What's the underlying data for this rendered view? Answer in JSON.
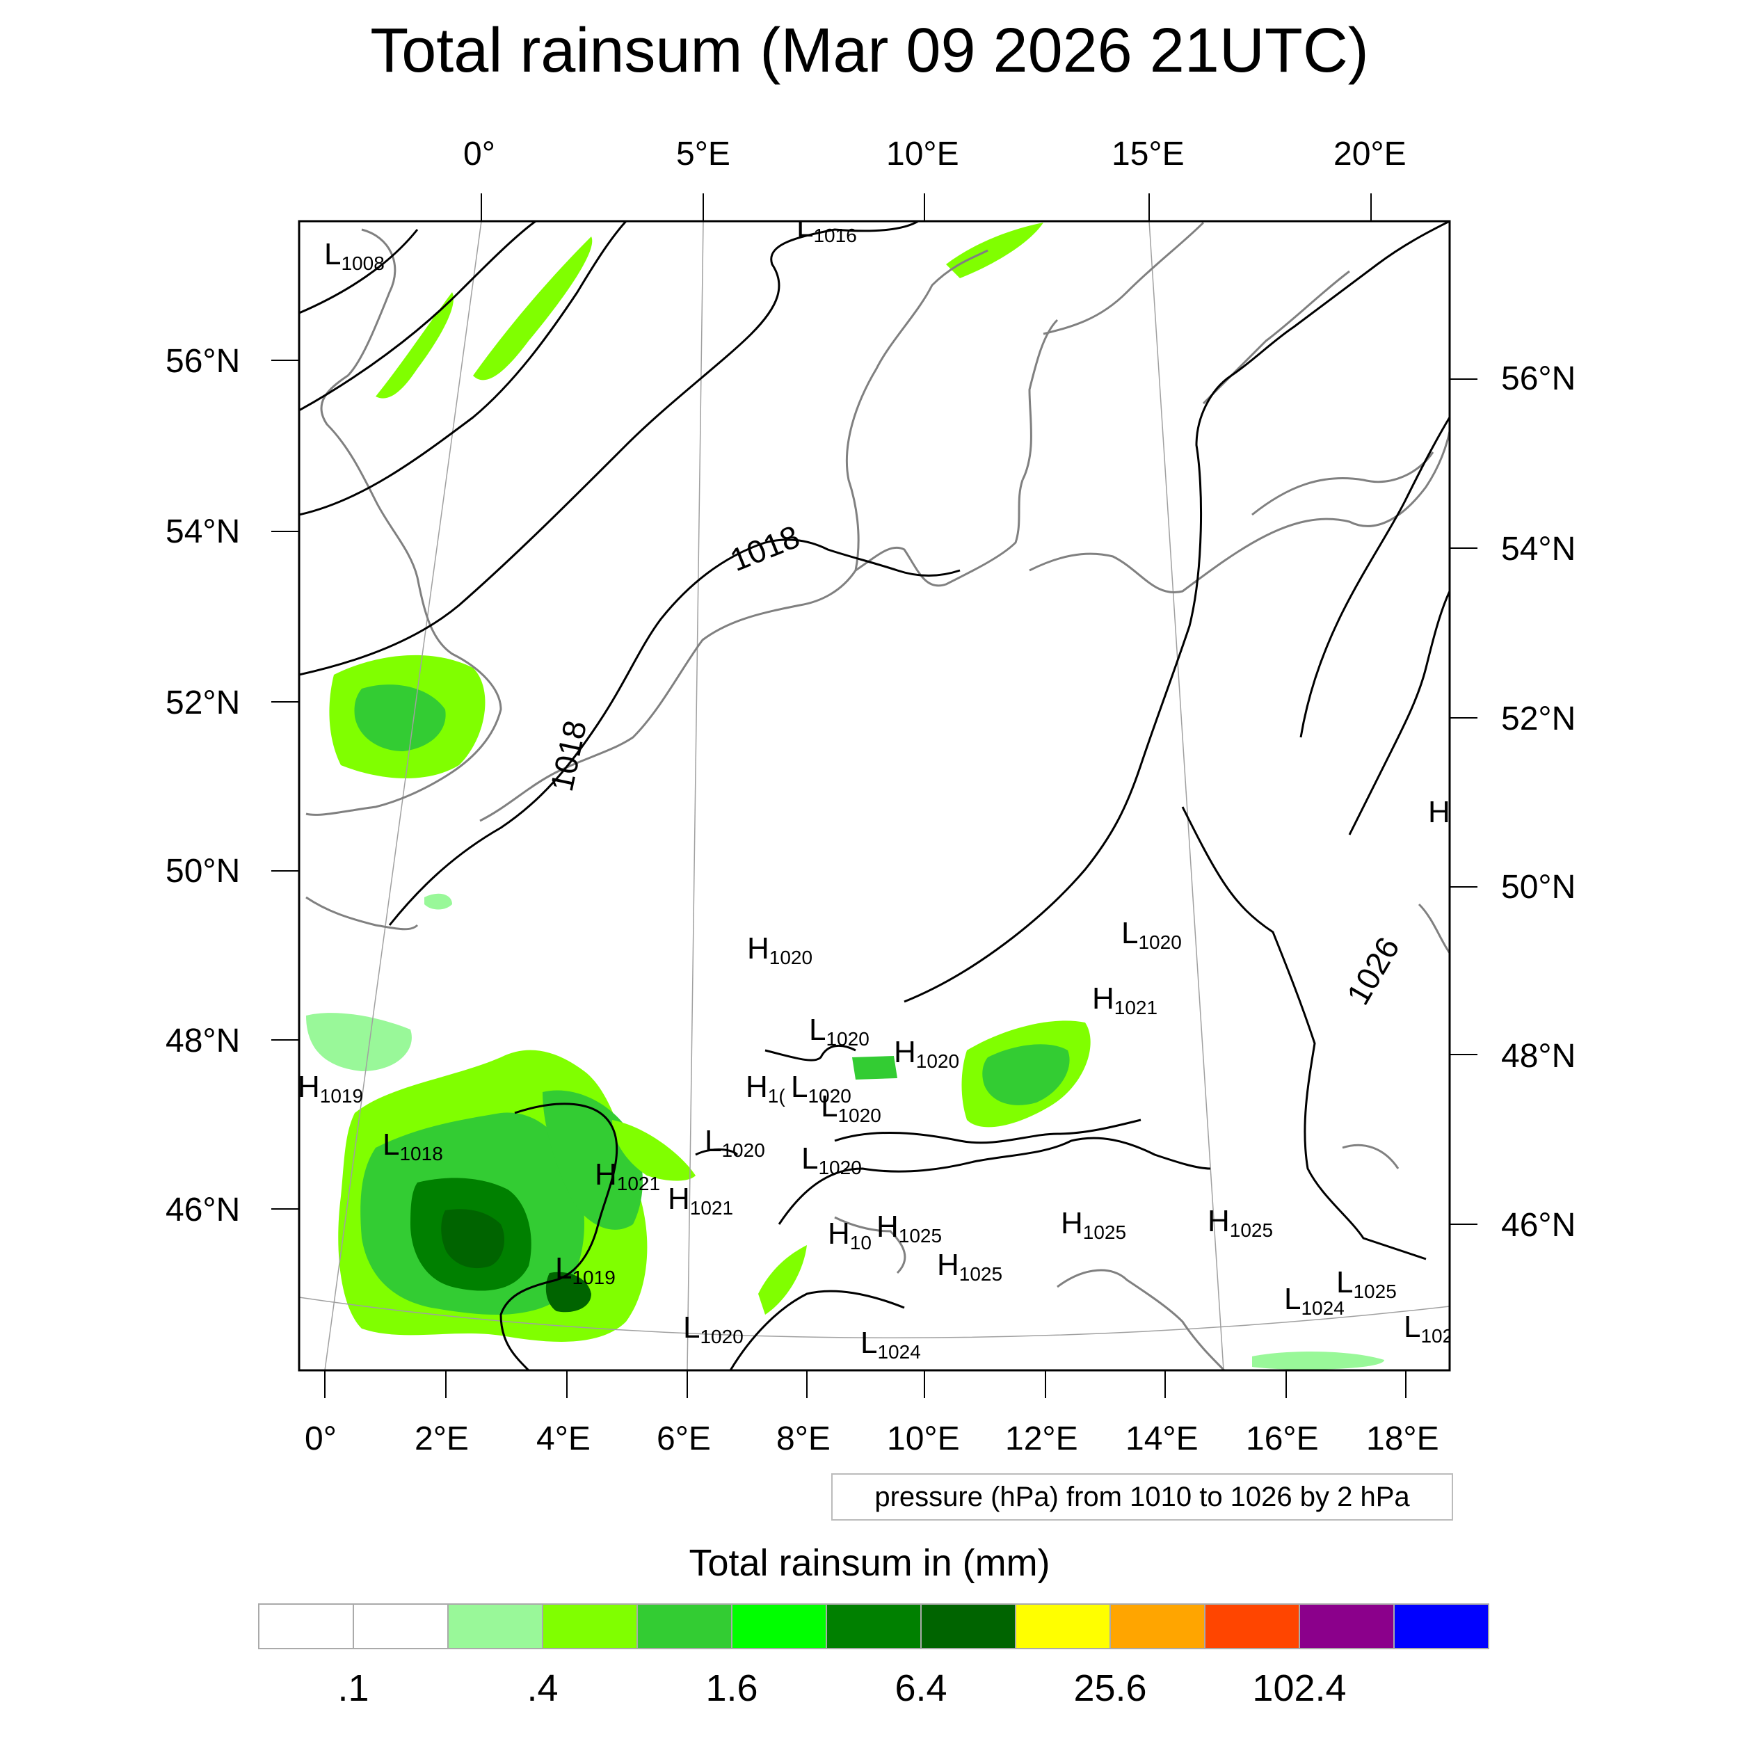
{
  "title": "Total rainsum (Mar 09 2026 21UTC)",
  "map": {
    "top_lon_labels": [
      "0°",
      "5°E",
      "10°E",
      "15°E",
      "20°E"
    ],
    "bottom_lon_labels": [
      "0°",
      "2°E",
      "4°E",
      "6°E",
      "8°E",
      "10°E",
      "12°E",
      "14°E",
      "16°E",
      "18°E"
    ],
    "left_lat_labels": [
      "56°N",
      "54°N",
      "52°N",
      "50°N",
      "48°N",
      "46°N"
    ],
    "right_lat_labels": [
      "56°N",
      "54°N",
      "52°N",
      "50°N",
      "48°N",
      "46°N"
    ],
    "pressure_centers": [
      {
        "letter": "L",
        "value": "1008"
      },
      {
        "letter": "L",
        "value": "1016"
      },
      {
        "letter": "H",
        "value": "1020"
      },
      {
        "letter": "L",
        "value": "1020"
      },
      {
        "letter": "H",
        "value": "1021"
      },
      {
        "letter": "L",
        "value": "1020"
      },
      {
        "letter": "H",
        "value": "1020"
      },
      {
        "letter": "H",
        "value": "1019"
      },
      {
        "letter": "H",
        "value": "1("
      },
      {
        "letter": "L",
        "value": "1020"
      },
      {
        "letter": "L",
        "value": "1020"
      },
      {
        "letter": "L",
        "value": "1018"
      },
      {
        "letter": "L",
        "value": "1020"
      },
      {
        "letter": "L",
        "value": "1020"
      },
      {
        "letter": "H",
        "value": "1021"
      },
      {
        "letter": "H",
        "value": "1021"
      },
      {
        "letter": "H",
        "value": "10"
      },
      {
        "letter": "H",
        "value": "1025"
      },
      {
        "letter": "H",
        "value": "1025"
      },
      {
        "letter": "H",
        "value": "1025"
      },
      {
        "letter": "H",
        "value": "1025"
      },
      {
        "letter": "L",
        "value": "1019"
      },
      {
        "letter": "L",
        "value": "1020"
      },
      {
        "letter": "L",
        "value": "1024"
      },
      {
        "letter": "L",
        "value": "1024"
      },
      {
        "letter": "L",
        "value": "1025"
      },
      {
        "letter": "L",
        "value": "102"
      },
      {
        "letter": "H",
        "value": ""
      }
    ],
    "isobar_labels": [
      "1018",
      "1018",
      "1026"
    ],
    "contour_note": "pressure (hPa) from 1010 to 1026 by 2 hPa"
  },
  "colorbar": {
    "title": "Total rainsum in (mm)",
    "colors": [
      "#ffffff",
      "#ffffff",
      "#99f899",
      "#80ff00",
      "#33cc33",
      "#00ff00",
      "#008000",
      "#006400",
      "#ffff00",
      "#ffa500",
      "#ff4500",
      "#8b008b",
      "#0000ff"
    ],
    "labels": [
      ".1",
      ".4",
      "1.6",
      "6.4",
      "25.6",
      "102.4"
    ]
  }
}
